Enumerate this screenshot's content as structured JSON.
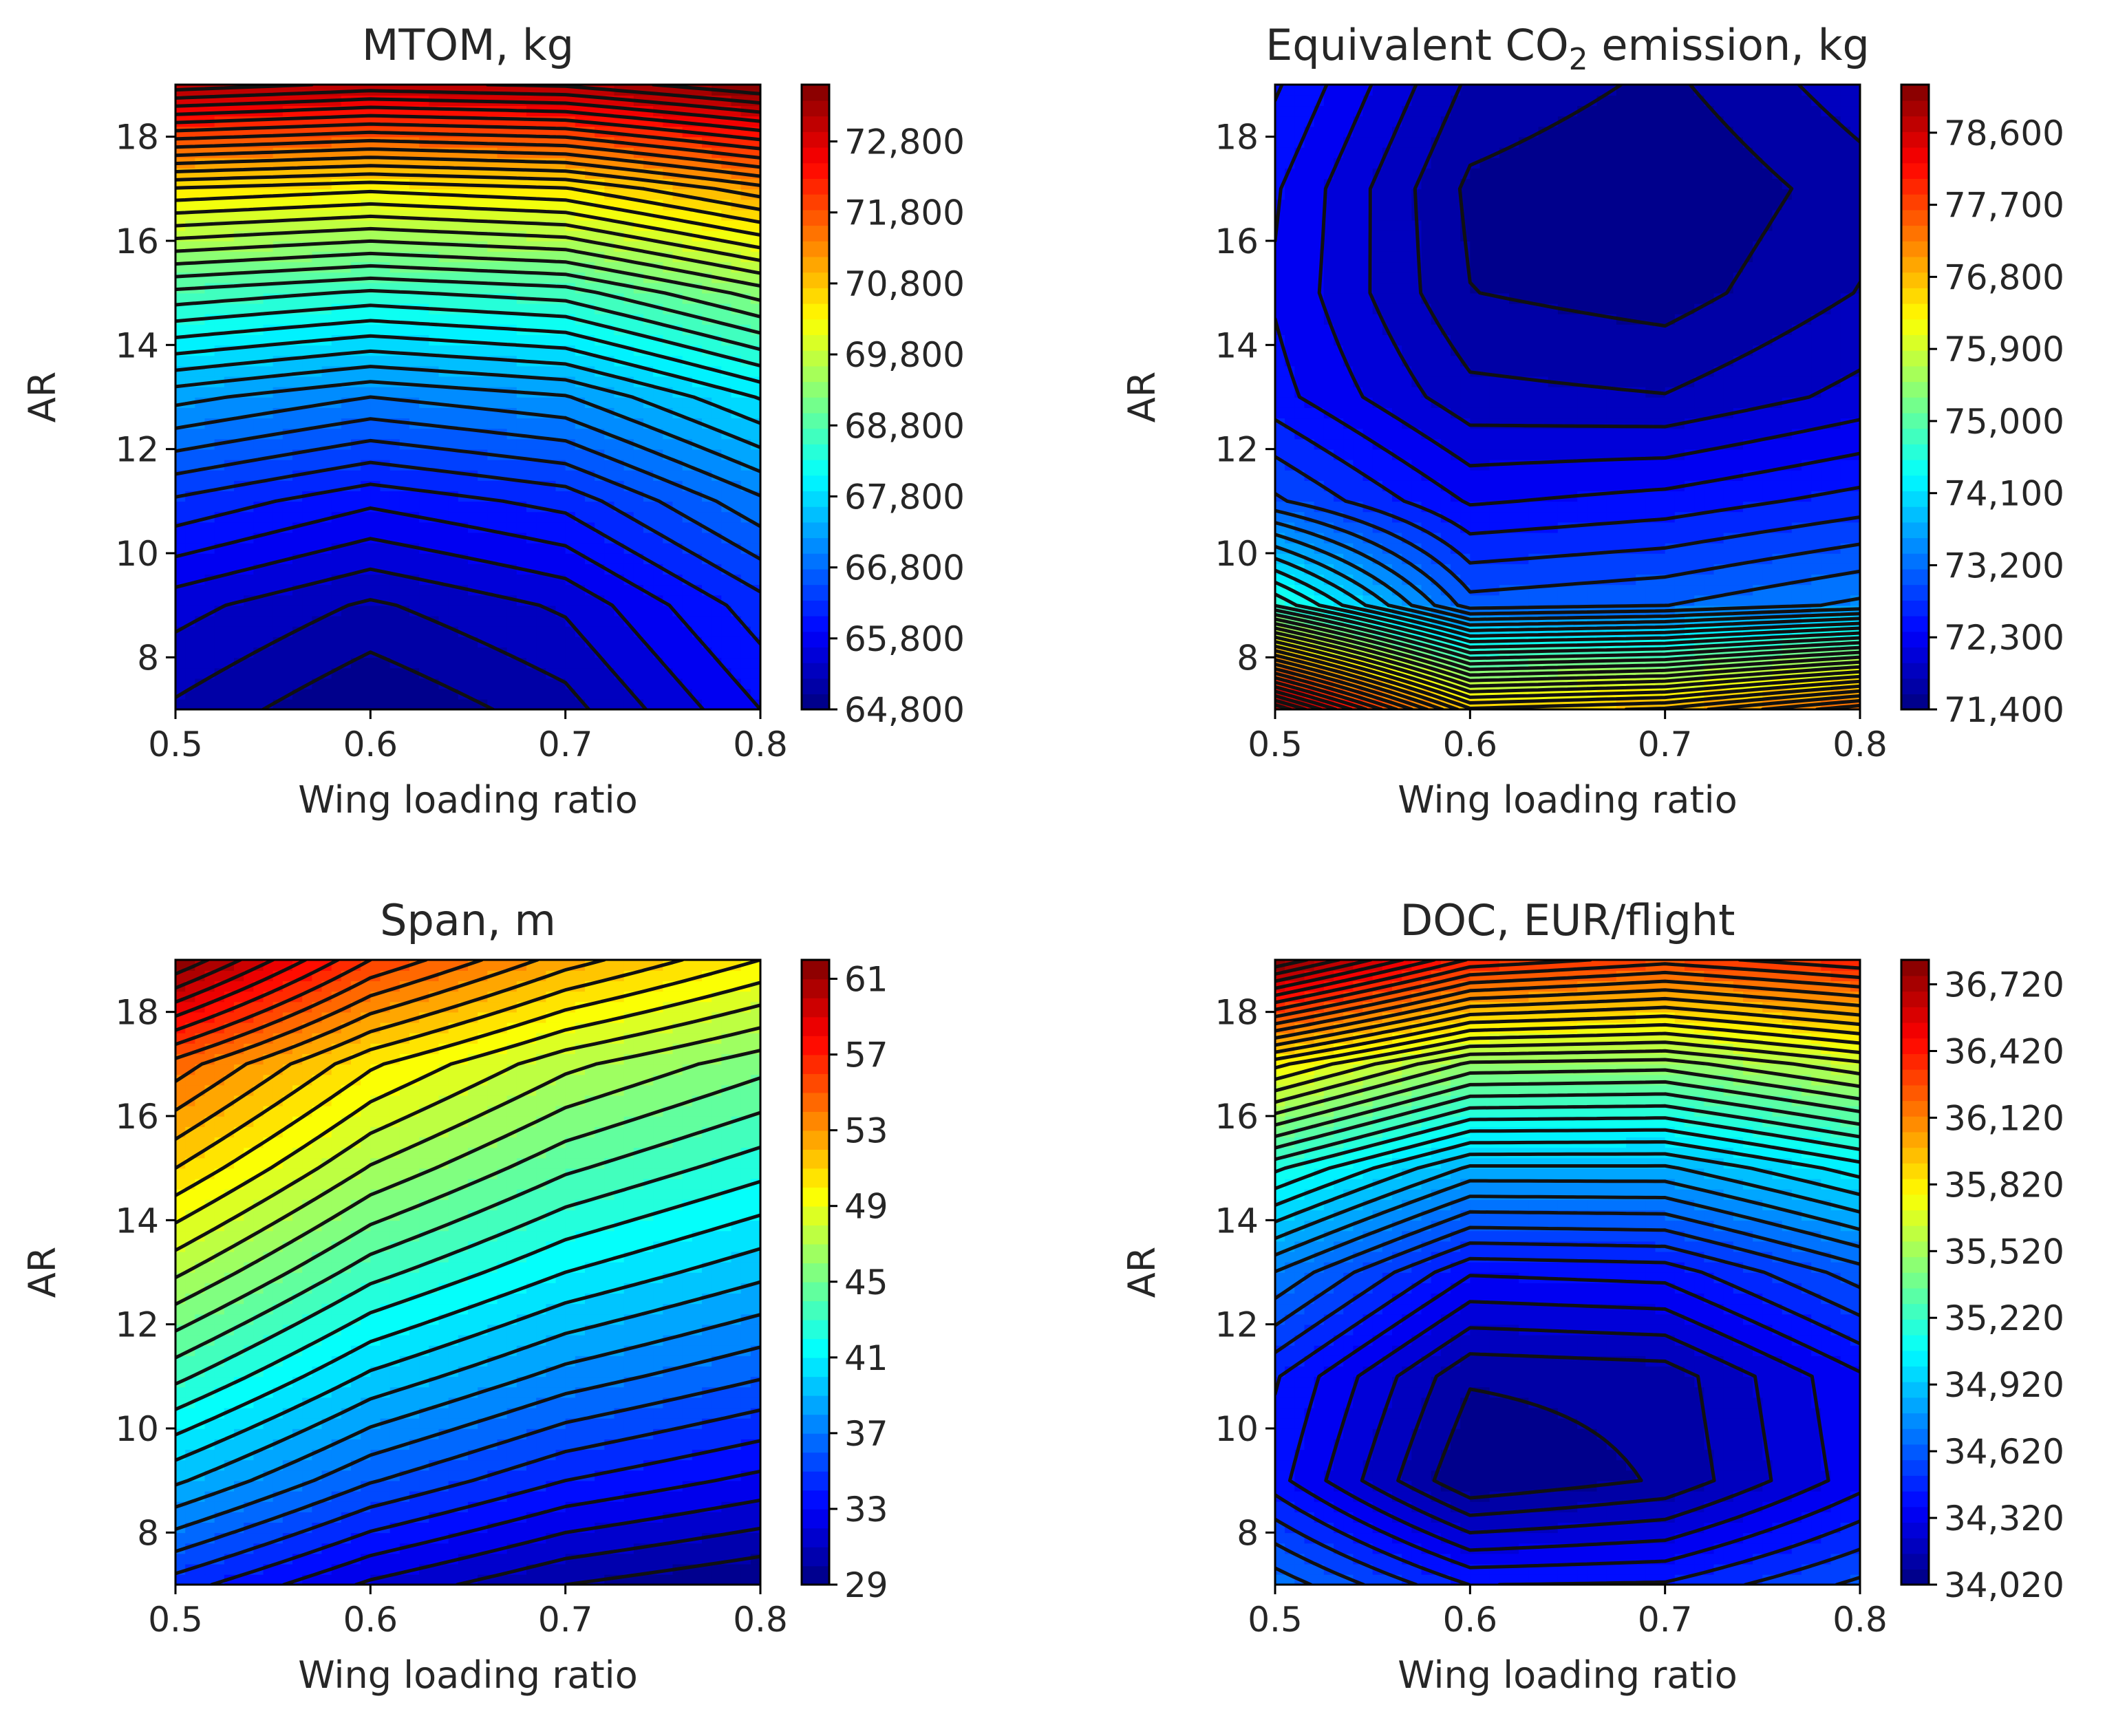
{
  "chart_data": [
    {
      "type": "contour",
      "title": "MTOM, kg",
      "xlabel": "Wing loading ratio",
      "ylabel": "AR",
      "x": [
        0.5,
        0.6,
        0.7,
        0.8
      ],
      "y": [
        7,
        9,
        11,
        13,
        15,
        17,
        19
      ],
      "xlim": [
        0.5,
        0.8
      ],
      "ylim": [
        7,
        19
      ],
      "xticks": [
        "0.5",
        "0.6",
        "0.7",
        "0.8"
      ],
      "yticks": [
        "8",
        "10",
        "12",
        "14",
        "16",
        "18"
      ],
      "z": [
        [
          65200,
          64800,
          65150,
          65900
        ],
        [
          65550,
          65200,
          65500,
          66250
        ],
        [
          66300,
          65950,
          66200,
          66950
        ],
        [
          67300,
          67000,
          67200,
          67900
        ],
        [
          68700,
          68500,
          68650,
          69300
        ],
        [
          70500,
          70350,
          70500,
          71100
        ],
        [
          73300,
          73100,
          73200,
          73600
        ]
      ],
      "colorbar": {
        "min": 64800,
        "max": 73600,
        "levels": 40,
        "ticks": [
          "64,800",
          "65,800",
          "66,800",
          "67,800",
          "68,800",
          "69,800",
          "70,800",
          "71,800",
          "72,800"
        ]
      }
    },
    {
      "type": "contour",
      "title": "Equivalent CO2 emission, kg",
      "title_main": "Equivalent CO",
      "title_sub": "2",
      "title_rest": " emission, kg",
      "xlabel": "Wing loading ratio",
      "ylabel": "AR",
      "x": [
        0.5,
        0.6,
        0.7,
        0.8
      ],
      "y": [
        7,
        9,
        11,
        13,
        15,
        17,
        19
      ],
      "xlim": [
        0.5,
        0.8
      ],
      "ylim": [
        7,
        19
      ],
      "xticks": [
        "0.5",
        "0.6",
        "0.7",
        "0.8"
      ],
      "yticks": [
        "8",
        "10",
        "12",
        "14",
        "16",
        "18"
      ],
      "z": [
        [
          79200,
          76700,
          76900,
          77600
        ],
        [
          74700,
          73050,
          73150,
          73400
        ],
        [
          73000,
          72350,
          72450,
          72650
        ],
        [
          72450,
          71850,
          71800,
          72050
        ],
        [
          72350,
          71600,
          71500,
          71800
        ],
        [
          72400,
          71550,
          71400,
          71700
        ],
        [
          72600,
          71750,
          71550,
          71900
        ]
      ],
      "colorbar": {
        "min": 71400,
        "max": 79200,
        "levels": 40,
        "ticks": [
          "71,400",
          "72,300",
          "73,200",
          "74,100",
          "75,000",
          "75,900",
          "76,800",
          "77,700",
          "78,600"
        ]
      }
    },
    {
      "type": "contour",
      "title": "Span, m",
      "xlabel": "Wing loading ratio",
      "ylabel": "AR",
      "x": [
        0.5,
        0.6,
        0.7,
        0.8
      ],
      "y": [
        7,
        9,
        11,
        13,
        15,
        17,
        19
      ],
      "xlim": [
        0.5,
        0.8
      ],
      "ylim": [
        7,
        19
      ],
      "xticks": [
        "0.5",
        "0.6",
        "0.7",
        "0.8"
      ],
      "yticks": [
        "8",
        "10",
        "12",
        "14",
        "16",
        "18"
      ],
      "z": [
        [
          34.5,
          31.8,
          30.0,
          29.0
        ],
        [
          39.2,
          36.1,
          34.0,
          32.7
        ],
        [
          43.3,
          39.8,
          37.6,
          36.1
        ],
        [
          47.2,
          43.4,
          41.0,
          39.3
        ],
        [
          51.0,
          46.9,
          44.2,
          42.4
        ],
        [
          54.6,
          50.2,
          47.3,
          45.4
        ],
        [
          62.0,
          56.0,
          52.5,
          50.0
        ]
      ],
      "colorbar": {
        "min": 29,
        "max": 62,
        "levels": 33,
        "ticks": [
          "29",
          "33",
          "37",
          "41",
          "45",
          "49",
          "53",
          "57",
          "61"
        ]
      }
    },
    {
      "type": "contour",
      "title": "DOC, EUR/flight",
      "xlabel": "Wing loading ratio",
      "ylabel": "AR",
      "x": [
        0.5,
        0.6,
        0.7,
        0.8
      ],
      "y": [
        7,
        9,
        11,
        13,
        15,
        17,
        19
      ],
      "xlim": [
        0.5,
        0.8
      ],
      "ylim": [
        7,
        19
      ],
      "xticks": [
        "0.5",
        "0.6",
        "0.7",
        "0.8"
      ],
      "yticks": [
        "8",
        "10",
        "12",
        "14",
        "16",
        "18"
      ],
      "z": [
        [
          34700,
          34440,
          34450,
          34600
        ],
        [
          34400,
          34020,
          34100,
          34340
        ],
        [
          34450,
          34100,
          34120,
          34360
        ],
        [
          34720,
          34380,
          34400,
          34620
        ],
        [
          35160,
          34850,
          34850,
          35040
        ],
        [
          35800,
          35480,
          35460,
          35620
        ],
        [
          36830,
          36400,
          36300,
          36400
        ]
      ],
      "colorbar": {
        "min": 34020,
        "max": 36830,
        "levels": 40,
        "ticks": [
          "34,020",
          "34,320",
          "34,620",
          "34,920",
          "35,220",
          "35,520",
          "35,820",
          "36,120",
          "36,420",
          "36,720"
        ]
      }
    }
  ]
}
